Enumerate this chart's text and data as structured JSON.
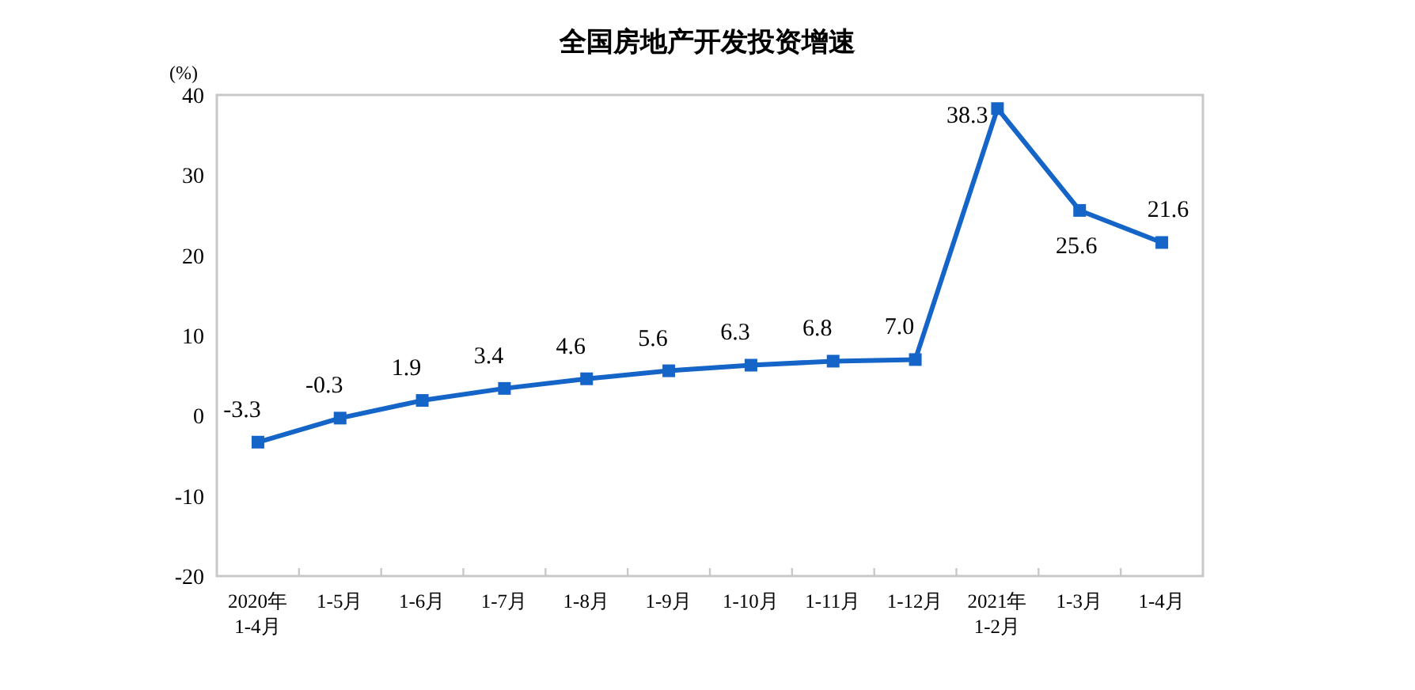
{
  "chart_data": {
    "type": "line",
    "title": "全国房地产开发投资增速",
    "ylabel": "(%)",
    "categories": [
      "2020年\n1-4月",
      "1-5月",
      "1-6月",
      "1-7月",
      "1-8月",
      "1-9月",
      "1-10月",
      "1-11月",
      "1-12月",
      "2021年\n1-2月",
      "1-3月",
      "1-4月"
    ],
    "series": [
      {
        "color": "#1565c8",
        "values": [
          -3.3,
          -0.3,
          1.9,
          3.4,
          4.6,
          5.6,
          6.3,
          6.8,
          7.0,
          38.3,
          25.6,
          21.6
        ],
        "value_labels": [
          "-3.3",
          "-0.3",
          "1.9",
          "3.4",
          "4.6",
          "5.6",
          "6.3",
          "6.8",
          "7.0",
          "38.3",
          "25.6",
          "21.6"
        ]
      }
    ],
    "ylim": [
      -20,
      40
    ],
    "yticks": [
      -20,
      -10,
      0,
      10,
      20,
      30,
      40
    ],
    "grid": false,
    "marker": "square",
    "line_style": "solid"
  }
}
